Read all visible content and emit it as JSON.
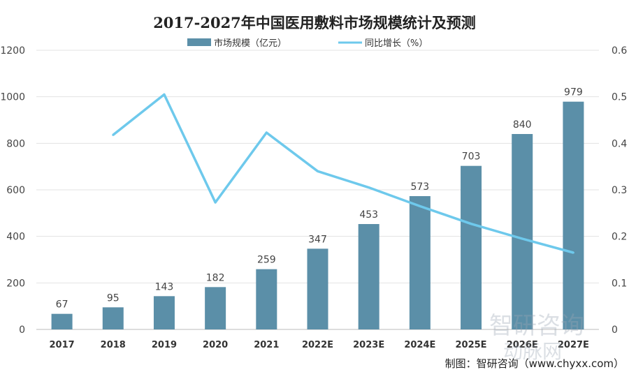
{
  "chart_data": {
    "type": "bar+line",
    "title": "2017-2027年中国医用敷料市场规模统计及预测",
    "categories": [
      "2017",
      "2018",
      "2019",
      "2020",
      "2021",
      "2022E",
      "2023E",
      "2024E",
      "2025E",
      "2026E",
      "2027E"
    ],
    "series": [
      {
        "name": "市场规模（亿元）",
        "type": "bar",
        "axis": "left",
        "color": "#5b8fa8",
        "values": [
          67,
          95,
          143,
          182,
          259,
          347,
          453,
          573,
          703,
          840,
          979
        ]
      },
      {
        "name": "同比增长（%）",
        "type": "line",
        "axis": "right",
        "color": "#6ec9ec",
        "values": [
          null,
          0.418,
          0.505,
          0.273,
          0.423,
          0.34,
          0.305,
          0.265,
          0.227,
          0.195,
          0.165
        ]
      }
    ],
    "ylim": [
      0,
      1200
    ],
    "yticks": [
      "0",
      "200",
      "400",
      "600",
      "800",
      "1000",
      "1200"
    ],
    "y2lim": [
      0,
      0.6
    ],
    "y2ticks": [
      "0",
      "0.1",
      "0.2",
      "0.3",
      "0.4",
      "0.5",
      "0.6"
    ],
    "grid": true,
    "legend": "top"
  },
  "source": "制图：智研咨询（www.chyxx.com）",
  "watermarks": [
    "智研咨询",
    "动脉网"
  ]
}
